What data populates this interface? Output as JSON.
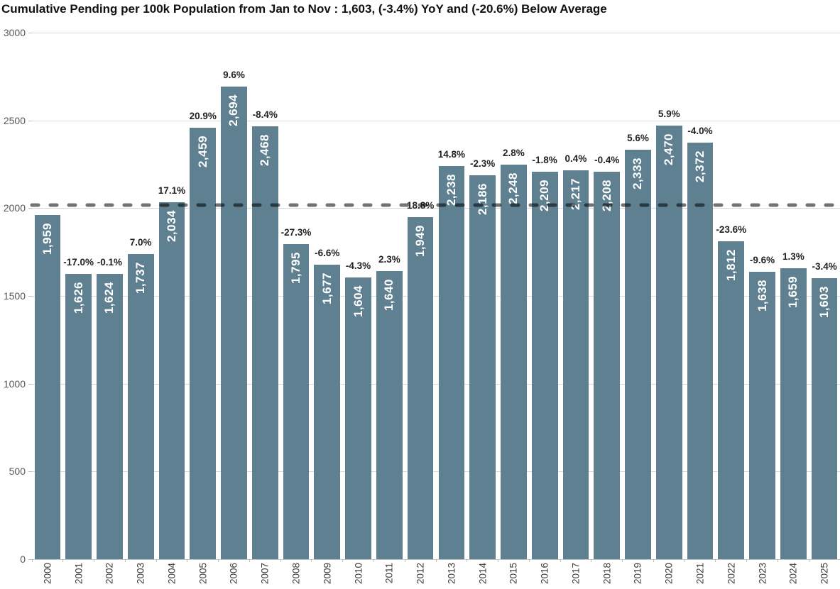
{
  "chart_data": {
    "type": "bar",
    "title": "Cumulative Pending per 100k Population from Jan to Nov : 1,603, (-3.4%) YoY and (-20.6%) Below Average",
    "categories": [
      "2000",
      "2001",
      "2002",
      "2003",
      "2004",
      "2005",
      "2006",
      "2007",
      "2008",
      "2009",
      "2010",
      "2011",
      "2012",
      "2013",
      "2014",
      "2015",
      "2016",
      "2017",
      "2018",
      "2019",
      "2020",
      "2021",
      "2022",
      "2023",
      "2024",
      "2025"
    ],
    "values": [
      1959,
      1626,
      1624,
      1737,
      2034,
      2459,
      2694,
      2468,
      1795,
      1677,
      1604,
      1640,
      1949,
      2238,
      2186,
      2248,
      2209,
      2217,
      2208,
      2333,
      2470,
      2372,
      1812,
      1638,
      1659,
      1603
    ],
    "bar_labels": [
      "1,959",
      "1,626",
      "1,624",
      "1,737",
      "2,034",
      "2,459",
      "2,694",
      "2,468",
      "1,795",
      "1,677",
      "1,604",
      "1,640",
      "1,949",
      "2,238",
      "2,186",
      "2,248",
      "2,209",
      "2,217",
      "2,208",
      "2,333",
      "2,470",
      "2,372",
      "1,812",
      "1,638",
      "1,659",
      "1,603"
    ],
    "yoy_labels": [
      "",
      "-17.0%",
      "-0.1%",
      "7.0%",
      "17.1%",
      "20.9%",
      "9.6%",
      "-8.4%",
      "-27.3%",
      "-6.6%",
      "-4.3%",
      "2.3%",
      "18.8%",
      "14.8%",
      "-2.3%",
      "2.8%",
      "-1.8%",
      "0.4%",
      "-0.4%",
      "5.6%",
      "5.9%",
      "-4.0%",
      "-23.6%",
      "-9.6%",
      "1.3%",
      "-3.4%"
    ],
    "ylim": [
      0,
      3000
    ],
    "yticks": [
      0,
      500,
      1000,
      1500,
      2000,
      2500,
      3000
    ],
    "average_line": {
      "value": 2019,
      "style": "dashed"
    },
    "grid": true,
    "legend": "none",
    "colors": {
      "bar": "#5e8091",
      "bar_label": "#ffffff",
      "pct_label": "#222222",
      "average_line": "rgba(0,0,0,0.55)",
      "gridline": "#d9d9d9",
      "axis_label": "#595959",
      "year_label": "#3d3d3d",
      "title": "#111111"
    }
  }
}
